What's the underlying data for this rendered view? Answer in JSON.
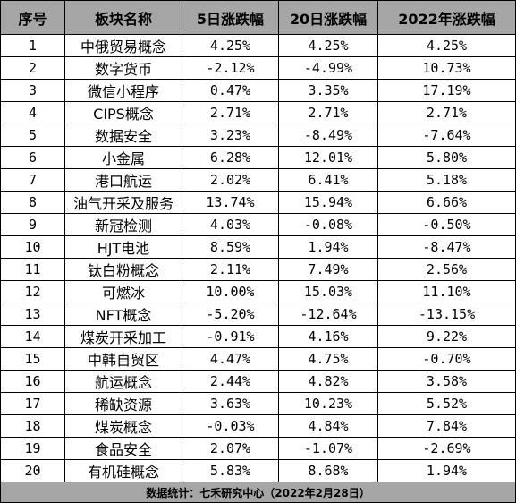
{
  "table": {
    "headers": [
      "序号",
      "板块名称",
      "5日涨跌幅",
      "20日涨跌幅",
      "2022年涨跌幅"
    ],
    "rows": [
      [
        "1",
        "中俄贸易概念",
        "4.25%",
        "4.25%",
        "4.25%"
      ],
      [
        "2",
        "数字货币",
        "-2.12%",
        "-4.99%",
        "10.73%"
      ],
      [
        "3",
        "微信小程序",
        "0.47%",
        "3.35%",
        "17.19%"
      ],
      [
        "4",
        "CIPS概念",
        "2.71%",
        "2.71%",
        "2.71%"
      ],
      [
        "5",
        "数据安全",
        "3.23%",
        "-8.49%",
        "-7.64%"
      ],
      [
        "6",
        "小金属",
        "6.28%",
        "12.01%",
        "5.80%"
      ],
      [
        "7",
        "港口航运",
        "2.02%",
        "6.41%",
        "5.18%"
      ],
      [
        "8",
        "油气开采及服务",
        "13.74%",
        "15.94%",
        "6.66%"
      ],
      [
        "9",
        "新冠检测",
        "4.03%",
        "-0.08%",
        "-0.50%"
      ],
      [
        "10",
        "HJT电池",
        "8.59%",
        "1.94%",
        "-8.47%"
      ],
      [
        "11",
        "钛白粉概念",
        "2.11%",
        "7.49%",
        "2.56%"
      ],
      [
        "12",
        "可燃冰",
        "10.00%",
        "15.03%",
        "11.10%"
      ],
      [
        "13",
        "NFT概念",
        "-5.20%",
        "-12.64%",
        "-13.15%"
      ],
      [
        "14",
        "煤炭开采加工",
        "-0.91%",
        "4.16%",
        "9.22%"
      ],
      [
        "15",
        "中韩自贸区",
        "4.47%",
        "4.75%",
        "-0.70%"
      ],
      [
        "16",
        "航运概念",
        "2.44%",
        "4.82%",
        "3.58%"
      ],
      [
        "17",
        "稀缺资源",
        "3.63%",
        "10.23%",
        "5.52%"
      ],
      [
        "18",
        "煤炭概念",
        "-0.03%",
        "4.84%",
        "7.84%"
      ],
      [
        "19",
        "食品安全",
        "2.07%",
        "-1.07%",
        "-2.69%"
      ],
      [
        "20",
        "有机硅概念",
        "5.83%",
        "8.68%",
        "1.94%"
      ]
    ],
    "footer": "数据统计：七禾研究中心（2022年2月28日）"
  },
  "colors": {
    "header_bg": "#a6a6a6",
    "border": "#000000",
    "text": "#000000"
  }
}
